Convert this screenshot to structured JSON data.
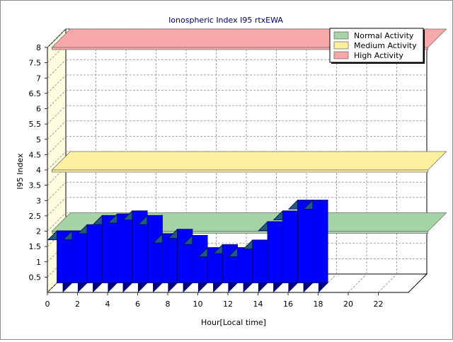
{
  "chart_data": {
    "type": "bar",
    "title": "Ionospheric Index I95 rtxEWA",
    "xlabel": "Hour[Local time]",
    "ylabel": "I95 Index",
    "ylim": [
      0,
      8
    ],
    "y_ticks": [
      "0.5",
      "1",
      "1.5",
      "2",
      "2.5",
      "3",
      "3.5",
      "4",
      "4.5",
      "5",
      "5.5",
      "6",
      "6.5",
      "7",
      "7.5",
      "8"
    ],
    "x_ticks": [
      "0",
      "2",
      "4",
      "6",
      "8",
      "10",
      "12",
      "14",
      "16",
      "18",
      "20",
      "22"
    ],
    "x_range": [
      0,
      24
    ],
    "hours": [
      0,
      1,
      2,
      3,
      4,
      5,
      6,
      7,
      8,
      9,
      10,
      11,
      12,
      13,
      14,
      15,
      16,
      17
    ],
    "values": [
      1.7,
      1.7,
      1.9,
      2.2,
      2.25,
      2.35,
      2.2,
      1.6,
      1.75,
      1.55,
      1.15,
      1.25,
      1.15,
      1.4,
      2.0,
      2.35,
      2.7,
      2.7
    ],
    "bar_color": "#0000ff",
    "grid": true,
    "legend_position": "top-right",
    "bands": [
      {
        "name": "Normal Activity",
        "level": 2.0,
        "color": "#a6d4a6"
      },
      {
        "name": "Medium Activity",
        "level": 4.0,
        "color": "#fcf0a0"
      },
      {
        "name": "High Activity",
        "level": 8.0,
        "color": "#f8a8a8"
      }
    ]
  }
}
